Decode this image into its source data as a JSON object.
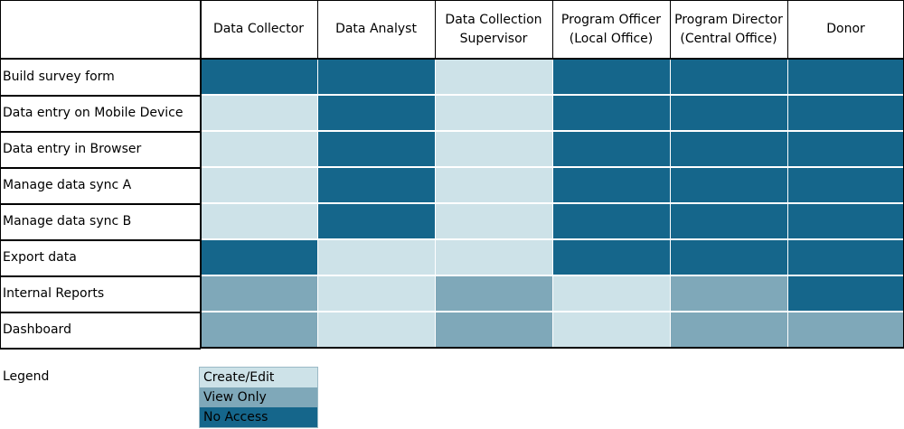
{
  "matrix": {
    "columns": [
      "Data Collector",
      "Data Analyst",
      "Data Collection Supervisor",
      "Program Officer (Local Office)",
      "Program Director (Central Office)",
      "Donor"
    ],
    "rows": [
      {
        "label": "Build survey form",
        "access": [
          "none",
          "none",
          "create",
          "none",
          "none",
          "none"
        ]
      },
      {
        "label": "Data entry on Mobile Device",
        "access": [
          "create",
          "none",
          "create",
          "none",
          "none",
          "none"
        ]
      },
      {
        "label": "Data entry in Browser",
        "access": [
          "create",
          "none",
          "create",
          "none",
          "none",
          "none"
        ]
      },
      {
        "label": "Manage data sync A",
        "access": [
          "create",
          "none",
          "create",
          "none",
          "none",
          "none"
        ]
      },
      {
        "label": "Manage data sync B",
        "access": [
          "create",
          "none",
          "create",
          "none",
          "none",
          "none"
        ]
      },
      {
        "label": "Export data",
        "access": [
          "none",
          "create",
          "create",
          "none",
          "none",
          "none"
        ]
      },
      {
        "label": "Internal Reports",
        "access": [
          "view",
          "create",
          "view",
          "create",
          "view",
          "none"
        ]
      },
      {
        "label": "Dashboard",
        "access": [
          "view",
          "create",
          "view",
          "create",
          "view",
          "view"
        ]
      }
    ]
  },
  "legend": {
    "title": "Legend",
    "items": [
      {
        "key": "create",
        "label": "Create/Edit"
      },
      {
        "key": "view",
        "label": "View Only"
      },
      {
        "key": "none",
        "label": "No Access"
      }
    ]
  },
  "colors": {
    "create": "#cde2e8",
    "view": "#7fa8b9",
    "none": "#15668b",
    "grid": "#000000"
  }
}
